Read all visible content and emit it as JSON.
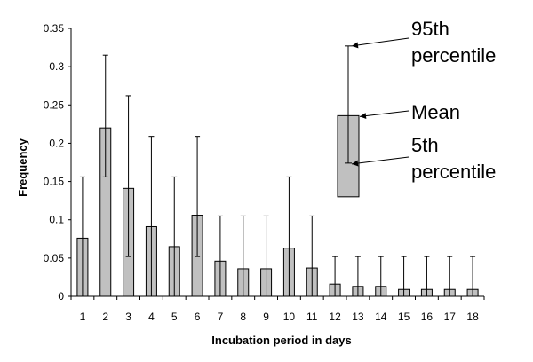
{
  "chart_data": {
    "type": "bar",
    "title": "",
    "xlabel": "Incubation period in days",
    "ylabel": "Frequency",
    "ylim": [
      0,
      0.35
    ],
    "yticks": [
      "0",
      "0.05",
      "0.1",
      "0.15",
      "0.2",
      "0.25",
      "0.3",
      "0.35"
    ],
    "ytick_values": [
      0,
      0.05,
      0.1,
      0.15,
      0.2,
      0.25,
      0.3,
      0.35
    ],
    "categories": [
      "1",
      "2",
      "3",
      "4",
      "5",
      "6",
      "7",
      "8",
      "9",
      "10",
      "11",
      "12",
      "13",
      "14",
      "15",
      "16",
      "17",
      "18"
    ],
    "values": [
      0.076,
      0.22,
      0.141,
      0.091,
      0.065,
      0.106,
      0.046,
      0.036,
      0.036,
      0.063,
      0.037,
      0.016,
      0.013,
      0.013,
      0.009,
      0.009,
      0.009,
      0.009
    ],
    "p95": [
      0.156,
      0.315,
      0.262,
      0.209,
      0.156,
      0.209,
      0.105,
      0.105,
      0.105,
      0.156,
      0.105,
      0.052,
      0.052,
      0.052,
      0.052,
      0.052,
      0.052,
      0.052
    ],
    "p5": [
      0.0,
      0.156,
      0.052,
      0.0,
      0.0,
      0.052,
      0.0,
      0.0,
      0.0,
      0.0,
      0.0,
      0.0,
      0.0,
      0.0,
      0.0,
      0.0,
      0.0,
      0.0
    ],
    "grid": false,
    "bar_color": "#c0c0c0",
    "legend": {
      "placement": "top-right",
      "example": {
        "p95": 0.327,
        "mean": 0.236,
        "p5": 0.174,
        "bar_bottom": 0.13
      },
      "labels": {
        "p95_line1": "95th",
        "p95_line2": "percentile",
        "mean": "Mean",
        "p5_line1": "5th",
        "p5_line2": "percentile"
      }
    }
  }
}
